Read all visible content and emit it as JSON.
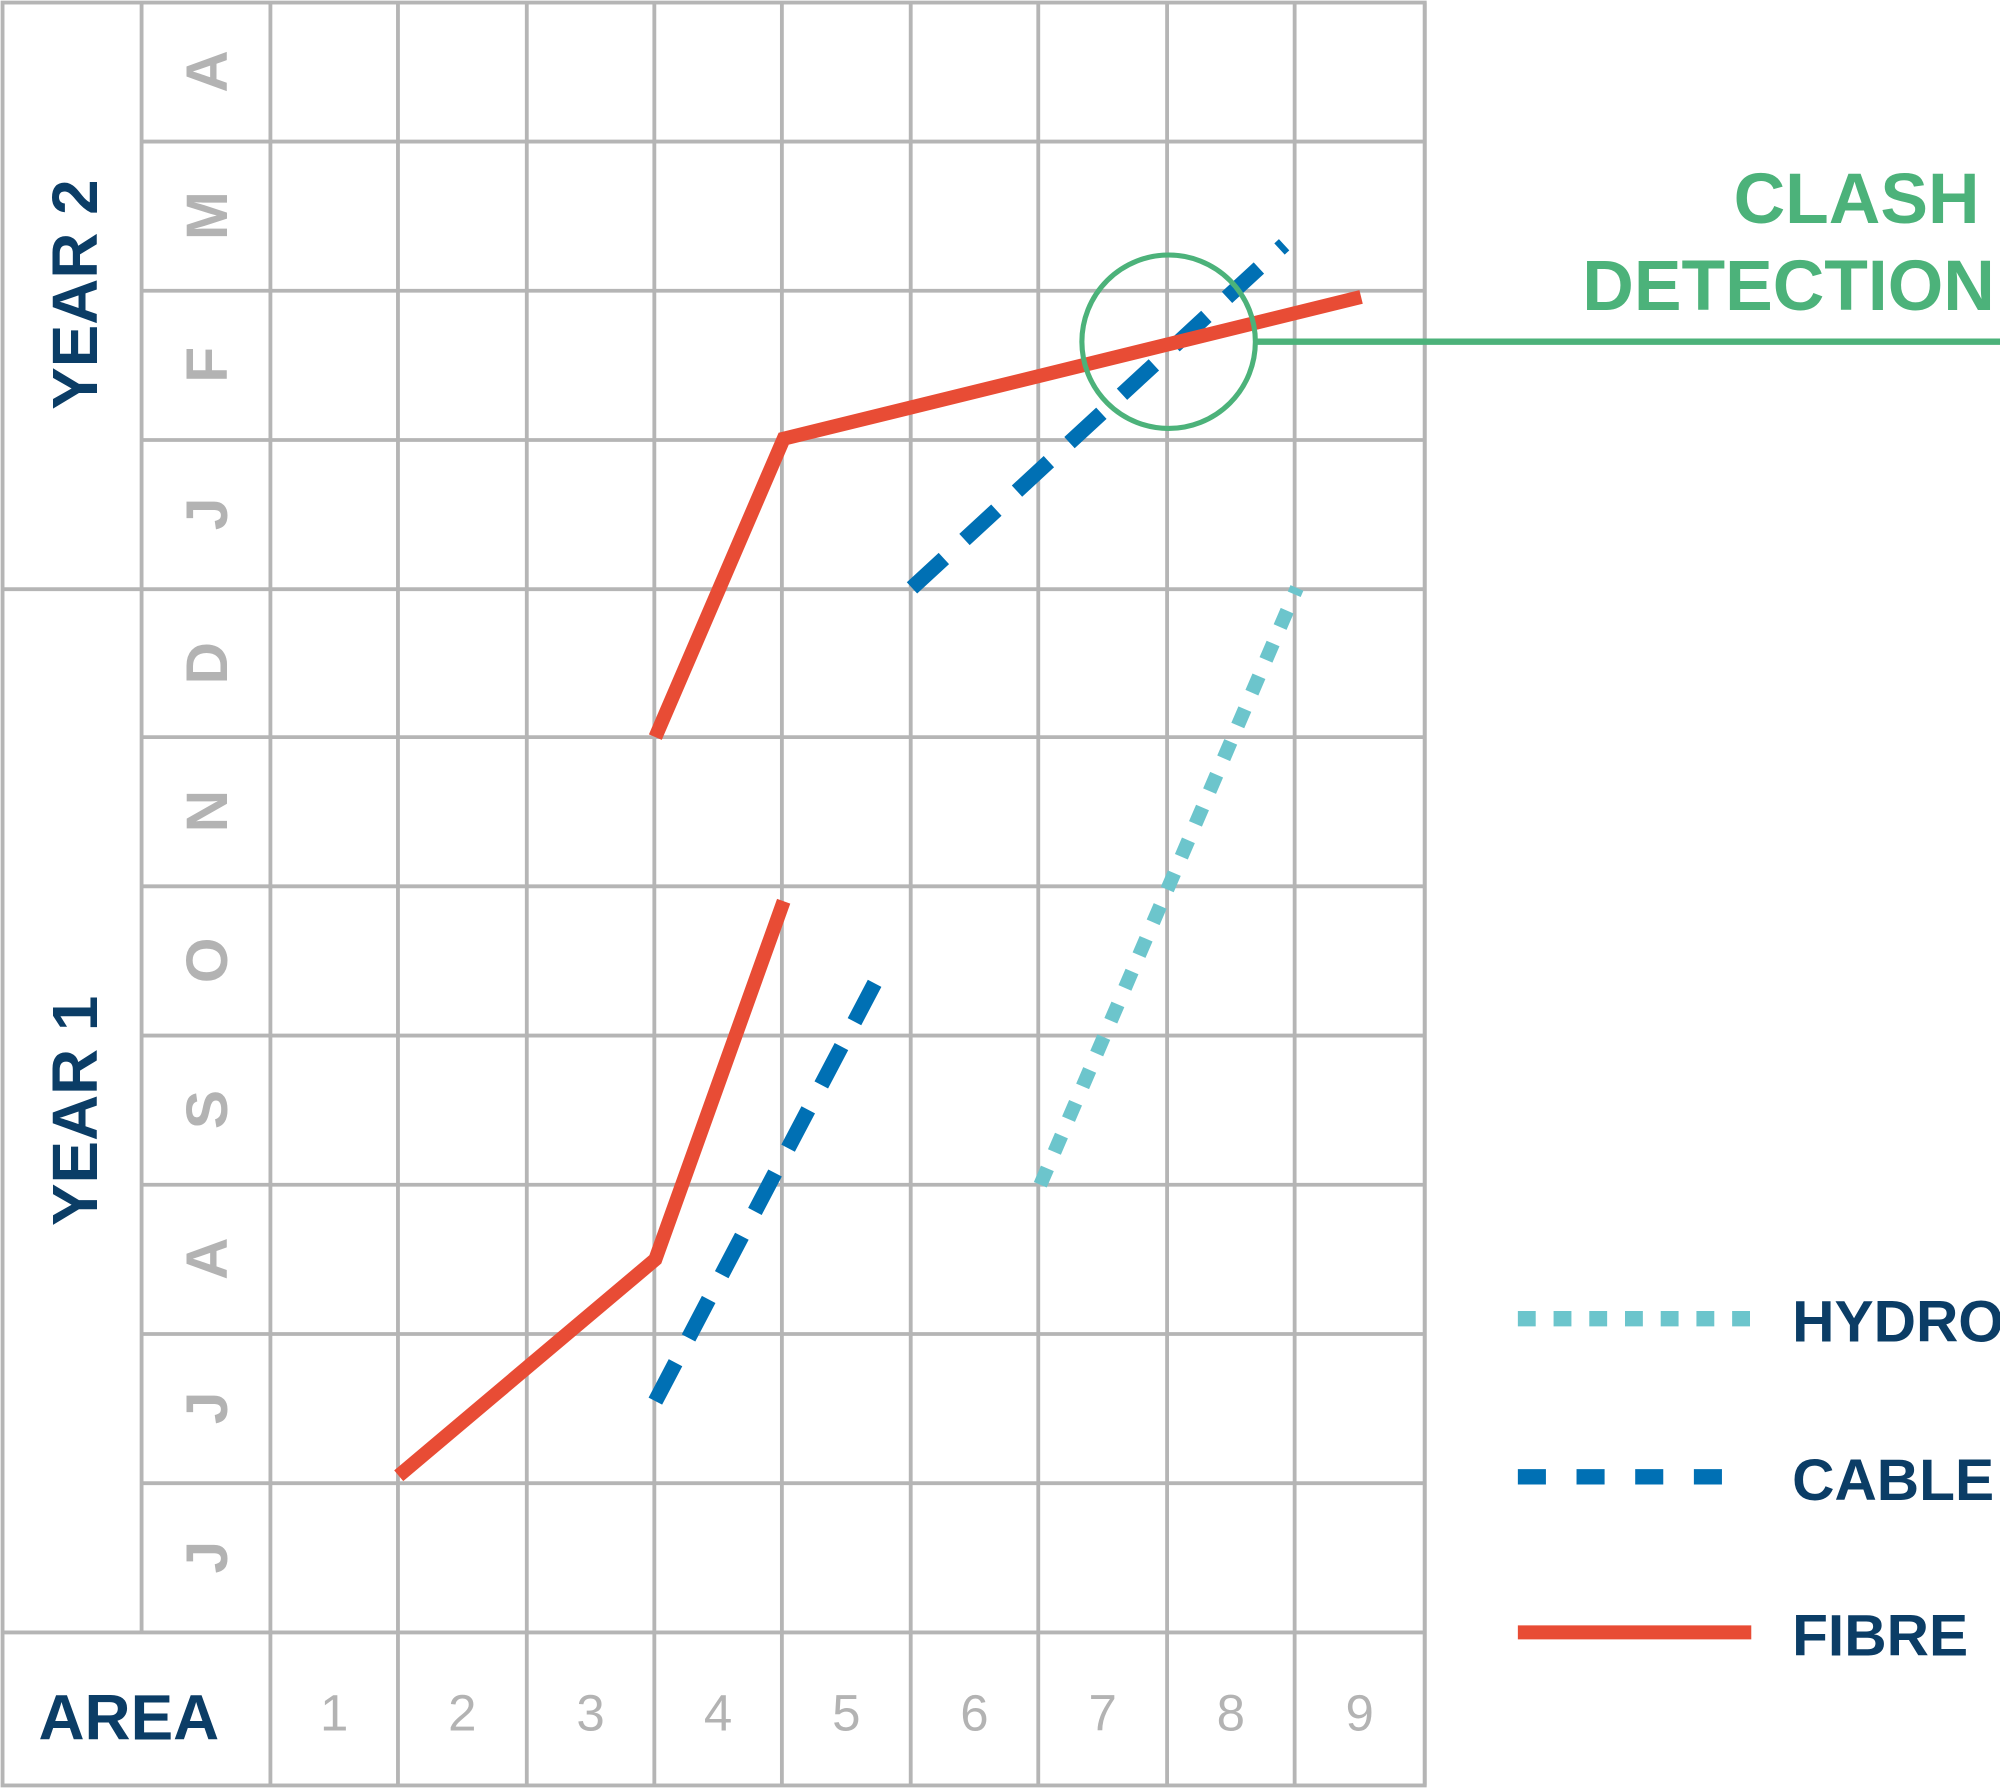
{
  "chart_data": {
    "type": "line",
    "title": "",
    "xlabel": "AREA",
    "x_ticks": [
      "1",
      "2",
      "3",
      "4",
      "5",
      "6",
      "7",
      "8",
      "9"
    ],
    "y_groups": [
      {
        "label": "YEAR 1",
        "months": [
          "J",
          "J",
          "A",
          "S",
          "O",
          "N",
          "D"
        ]
      },
      {
        "label": "YEAR 2",
        "months": [
          "J",
          "F",
          "M",
          "A"
        ]
      }
    ],
    "y_note_units": "months from start of Year 1 June row (bottom edge = 0)",
    "grid": true,
    "legend_position": "bottom-right",
    "series": [
      {
        "name": "HYDRO",
        "style": "dotted",
        "color": "#6cc5cc",
        "segments": [
          [
            [
              6.5,
              3.0
            ],
            [
              8.5,
              7.0
            ]
          ]
        ]
      },
      {
        "name": "CABLE",
        "style": "dashed",
        "color": "#0070b4",
        "segments": [
          [
            [
              3.5,
              1.55
            ],
            [
              5.3,
              4.5
            ]
          ],
          [
            [
              5.5,
              7.0
            ],
            [
              8.4,
              9.3
            ]
          ]
        ]
      },
      {
        "name": "FIBRE",
        "style": "solid",
        "color": "#e84c35",
        "segments": [
          [
            [
              1.5,
              1.05
            ],
            [
              3.5,
              2.5
            ],
            [
              4.5,
              4.9
            ]
          ],
          [
            [
              3.5,
              6.0
            ],
            [
              4.5,
              8.0
            ],
            [
              9.0,
              8.95
            ]
          ]
        ]
      }
    ],
    "annotation": {
      "text_line1": "CLASH",
      "text_line2": "DETECTION",
      "color": "#4cb27a",
      "x": 7.5,
      "y": 8.65
    }
  }
}
